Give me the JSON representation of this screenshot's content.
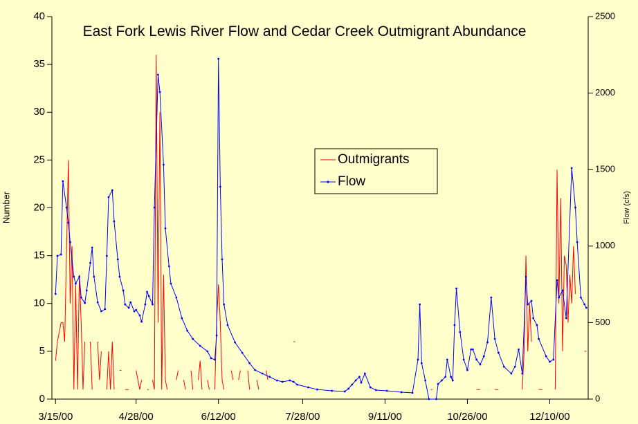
{
  "chart_data": {
    "type": "line",
    "title": "East Fork Lewis River Flow and Cedar Creek Outmigrant Abundance",
    "y_label": "Number",
    "y2_label": "Flow (cfs)",
    "xlim": [
      -2,
      291
    ],
    "xticks": [
      {
        "value": 0,
        "label": "3/15/00"
      },
      {
        "value": 44,
        "label": "4/28/00"
      },
      {
        "value": 89,
        "label": "6/12/00"
      },
      {
        "value": 135,
        "label": "7/28/00"
      },
      {
        "value": 180,
        "label": "9/11/00"
      },
      {
        "value": 225,
        "label": "10/26/00"
      },
      {
        "value": 270,
        "label": "12/10/00"
      }
    ],
    "ylim": [
      0,
      40
    ],
    "yticks": [
      0,
      5,
      10,
      15,
      20,
      25,
      30,
      35,
      40
    ],
    "y2lim": [
      0,
      2500
    ],
    "y2ticks": [
      0,
      500,
      1000,
      1500,
      2000,
      2500
    ],
    "legend": true,
    "series": [
      {
        "name": "Outmigrants",
        "color": "#ff0000",
        "axis": "y",
        "markers": false,
        "x": [
          0,
          1,
          3,
          4,
          5,
          7,
          8,
          9,
          10,
          11,
          12,
          13,
          14,
          15,
          16,
          17,
          19,
          20,
          21,
          23,
          24,
          25,
          26,
          28,
          29,
          30,
          31,
          32,
          33,
          35,
          36,
          38,
          39,
          40,
          41,
          44,
          45,
          46,
          47,
          48,
          50,
          51,
          53,
          54,
          55,
          56,
          57,
          58,
          59,
          60,
          61,
          62,
          66,
          67,
          68,
          70,
          71,
          72,
          74,
          75,
          76,
          78,
          79,
          80,
          81,
          83,
          84,
          85,
          87,
          88,
          89,
          90,
          91,
          92,
          93,
          96,
          97,
          98,
          100,
          101,
          102,
          105,
          106,
          107,
          110,
          111,
          112,
          115,
          116,
          117,
          130,
          131,
          205,
          206,
          207,
          230,
          232,
          233,
          240,
          242,
          243,
          255,
          256,
          257,
          258,
          259,
          260,
          261,
          264,
          266,
          267,
          273,
          274,
          275,
          276,
          277,
          278,
          279,
          280,
          281,
          282,
          283,
          284,
          285,
          289,
          290
        ],
        "values": [
          4,
          6,
          8,
          8,
          6,
          25,
          10,
          16,
          1,
          12,
          1,
          13,
          8,
          1,
          6,
          null,
          6,
          1,
          null,
          6,
          2,
          5,
          null,
          1,
          5,
          1,
          6,
          1,
          null,
          3,
          null,
          1,
          1,
          1,
          null,
          3,
          2,
          1,
          2,
          null,
          1,
          null,
          2,
          1,
          36,
          8,
          30,
          1,
          13,
          2,
          1,
          null,
          2,
          3,
          null,
          2,
          1,
          null,
          3,
          1,
          null,
          2,
          4,
          1,
          null,
          2,
          1,
          null,
          1,
          8,
          12,
          8,
          2,
          1,
          null,
          3,
          2,
          null,
          2,
          3,
          null,
          3,
          1,
          null,
          2,
          1,
          null,
          3,
          2,
          null,
          6,
          null,
          1,
          1,
          null,
          1,
          1,
          null,
          1,
          1,
          null,
          1,
          5,
          15,
          5,
          10,
          6,
          null,
          1,
          1,
          null,
          1,
          24,
          10,
          21,
          5,
          15,
          14,
          8,
          13,
          10,
          16,
          11,
          null,
          5,
          5
        ]
      },
      {
        "name": "Flow",
        "color": "#0000ff",
        "axis": "y2",
        "markers": true,
        "x": [
          0,
          1,
          3,
          4,
          6,
          7,
          8,
          10,
          11,
          13,
          14,
          16,
          17,
          19,
          20,
          21,
          23,
          25,
          27,
          28,
          29,
          31,
          32,
          34,
          35,
          37,
          38,
          40,
          41,
          43,
          44,
          46,
          47,
          49,
          50,
          51,
          53,
          54,
          56,
          57,
          59,
          60,
          62,
          63,
          66,
          69,
          72,
          75,
          79,
          83,
          85,
          87,
          88,
          89,
          90,
          91,
          92,
          94,
          98,
          102,
          106,
          109,
          113,
          117,
          121,
          124,
          128,
          130,
          132,
          138,
          143,
          151,
          158,
          160,
          162,
          164,
          166,
          167,
          169,
          172,
          175,
          181,
          189,
          195,
          198,
          199,
          200,
          202,
          204,
          208,
          209,
          211,
          213,
          214,
          216,
          217,
          218,
          219,
          221,
          223,
          225,
          227,
          228,
          230,
          232,
          234,
          236,
          238,
          240,
          242,
          245,
          249,
          251,
          253,
          255,
          257,
          258,
          260,
          261,
          263,
          264,
          268,
          270,
          272,
          274,
          275,
          277,
          279,
          282,
          284,
          285,
          287,
          289,
          290
        ],
        "values": [
          687,
          936,
          945,
          1424,
          1252,
          1153,
          1026,
          800,
          755,
          800,
          664,
          628,
          710,
          890,
          990,
          800,
          633,
          574,
          588,
          936,
          1320,
          1365,
          1162,
          913,
          800,
          710,
          619,
          597,
          633,
          574,
          583,
          547,
          506,
          619,
          701,
          673,
          619,
          1252,
          2120,
          2007,
          1532,
          1116,
          868,
          755,
          664,
          529,
          447,
          393,
          348,
          312,
          267,
          258,
          416,
          2224,
          1388,
          913,
          619,
          484,
          371,
          303,
          235,
          190,
          167,
          145,
          122,
          113,
          122,
          113,
          95,
          77,
          63,
          54,
          50,
          68,
          95,
          122,
          145,
          108,
          167,
          77,
          59,
          54,
          45,
          41,
          258,
          619,
          235,
          122,
          0,
          0,
          99,
          122,
          145,
          258,
          145,
          122,
          484,
          723,
          438,
          258,
          190,
          325,
          325,
          258,
          226,
          280,
          371,
          664,
          393,
          303,
          212,
          167,
          212,
          325,
          167,
          800,
          619,
          642,
          529,
          484,
          393,
          280,
          244,
          258,
          777,
          664,
          710,
          529,
          1510,
          1252,
          1026,
          664,
          619,
          597
        ]
      }
    ]
  }
}
